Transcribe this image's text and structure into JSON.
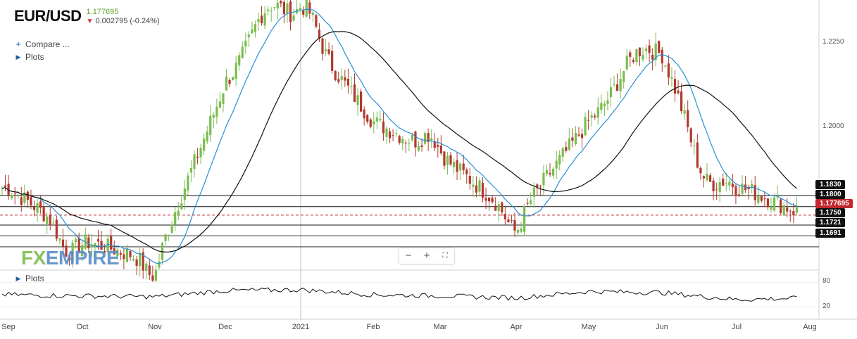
{
  "header": {
    "symbol": "EUR/USD",
    "price": "1.177695",
    "change": "0.002795 (-0.24%)"
  },
  "menu": {
    "compare_label": "Compare ...",
    "plots_label": "Plots",
    "osc_plots_label": "Plots"
  },
  "logo": {
    "fx": "FX",
    "empire": "EMPIRE"
  },
  "zoom_controls": {
    "minus": "−",
    "plus": "+",
    "fullscreen": "⛶"
  },
  "colors": {
    "up": "#7bbd4f",
    "down": "#b03a2e",
    "ma_fast": "#2a8fd1",
    "ma_slow": "#111111",
    "current_price_line": "#c1272d",
    "level_label_bg": "#111111"
  },
  "chart_data": [
    {
      "type": "candlestick",
      "title": "EUR/USD",
      "ylim": [
        1.163,
        1.235
      ],
      "y_ticks": [
        "1.2250",
        "1.2000"
      ],
      "x_ticks": [
        "Sep",
        "Oct",
        "Nov",
        "Dec",
        "2021",
        "Feb",
        "Mar",
        "Apr",
        "May",
        "Jun",
        "Jul",
        "Aug"
      ],
      "levels": [
        "1.1830",
        "1.1800",
        "1.177695",
        "1.1750",
        "1.1721",
        "1.1691"
      ],
      "current_price": 1.177695,
      "grid": false,
      "series": [
        {
          "kind": "candles_approx_path",
          "close_path": [
            [
              "Sep",
              1.185
            ],
            [
              "Oct",
              1.171
            ],
            [
              "Nov",
              1.165
            ],
            [
              "Dec",
              1.213
            ],
            [
              "2021",
              1.229
            ],
            [
              "Feb",
              1.203
            ],
            [
              "Mar",
              1.194
            ],
            [
              "Apr",
              1.177
            ],
            [
              "May",
              1.203
            ],
            [
              "Jun",
              1.218
            ],
            [
              "Jul",
              1.186
            ],
            [
              "Aug",
              1.177
            ]
          ]
        },
        {
          "kind": "moving_average_fast"
        },
        {
          "kind": "moving_average_slow"
        }
      ]
    },
    {
      "type": "line",
      "title": "",
      "ylim": [
        0,
        100
      ],
      "y_ticks": [
        "80",
        "20"
      ],
      "series": [
        {
          "kind": "oscillator",
          "values_path": [
            [
              "Sep",
              50
            ],
            [
              "Oct",
              47
            ],
            [
              "Nov",
              45
            ],
            [
              "Dec",
              60
            ],
            [
              "2021",
              62
            ],
            [
              "Feb",
              50
            ],
            [
              "Mar",
              47
            ],
            [
              "Apr",
              42
            ],
            [
              "May",
              58
            ],
            [
              "Jun",
              55
            ],
            [
              "Jul",
              38
            ],
            [
              "Aug",
              42
            ]
          ]
        }
      ]
    }
  ]
}
